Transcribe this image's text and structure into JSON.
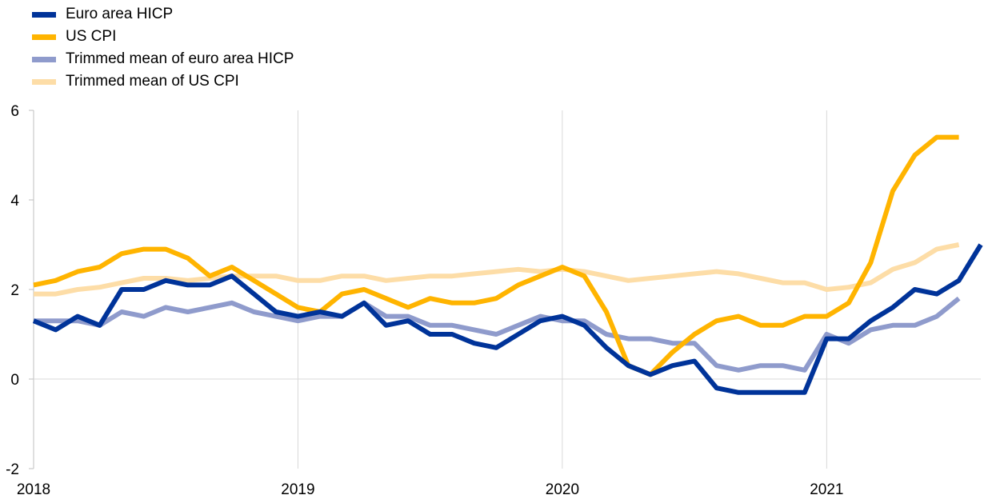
{
  "chart_data": {
    "type": "line",
    "title": "",
    "xlabel": "",
    "ylabel": "",
    "ylim": [
      -2,
      6
    ],
    "yticks": [
      -2,
      0,
      2,
      4,
      6
    ],
    "xticks": [
      {
        "label": "2018",
        "value": 2018
      },
      {
        "label": "2019",
        "value": 2019
      },
      {
        "label": "2020",
        "value": 2020
      },
      {
        "label": "2021",
        "value": 2021
      }
    ],
    "xlim": [
      2018,
      2021.583
    ],
    "grid": "vertical at year ticks",
    "legend_position": "top-left",
    "x_start": "2018-01",
    "series": [
      {
        "name": "Euro area HICP",
        "color": "#003399",
        "values": [
          1.3,
          1.1,
          1.4,
          1.2,
          2.0,
          2.0,
          2.2,
          2.1,
          2.1,
          2.3,
          1.9,
          1.5,
          1.4,
          1.5,
          1.4,
          1.7,
          1.2,
          1.3,
          1.0,
          1.0,
          0.8,
          0.7,
          1.0,
          1.3,
          1.4,
          1.2,
          0.7,
          0.3,
          0.1,
          0.3,
          0.4,
          -0.2,
          -0.3,
          -0.3,
          -0.3,
          -0.3,
          0.9,
          0.9,
          1.3,
          1.6,
          2.0,
          1.9,
          2.2,
          3.0
        ]
      },
      {
        "name": "US CPI",
        "color": "#FFB400",
        "values": [
          2.1,
          2.2,
          2.4,
          2.5,
          2.8,
          2.9,
          2.9,
          2.7,
          2.3,
          2.5,
          2.2,
          1.9,
          1.6,
          1.5,
          1.9,
          2.0,
          1.8,
          1.6,
          1.8,
          1.7,
          1.7,
          1.8,
          2.1,
          2.3,
          2.5,
          2.3,
          1.5,
          0.3,
          0.1,
          0.6,
          1.0,
          1.3,
          1.4,
          1.2,
          1.2,
          1.4,
          1.4,
          1.7,
          2.6,
          4.2,
          5.0,
          5.4,
          5.4
        ]
      },
      {
        "name": "Trimmed mean of euro area HICP",
        "color": "#8F9BCC",
        "values": [
          1.3,
          1.3,
          1.3,
          1.2,
          1.5,
          1.4,
          1.6,
          1.5,
          1.6,
          1.7,
          1.5,
          1.4,
          1.3,
          1.4,
          1.4,
          1.7,
          1.4,
          1.4,
          1.2,
          1.2,
          1.1,
          1.0,
          1.2,
          1.4,
          1.3,
          1.3,
          1.0,
          0.9,
          0.9,
          0.8,
          0.8,
          0.3,
          0.2,
          0.3,
          0.3,
          0.2,
          1.0,
          0.8,
          1.1,
          1.2,
          1.2,
          1.4,
          1.8
        ]
      },
      {
        "name": "Trimmed mean of US CPI",
        "color": "#FDDDA7",
        "values": [
          1.9,
          1.9,
          2.0,
          2.05,
          2.15,
          2.25,
          2.25,
          2.2,
          2.25,
          2.3,
          2.3,
          2.3,
          2.2,
          2.2,
          2.3,
          2.3,
          2.2,
          2.25,
          2.3,
          2.3,
          2.35,
          2.4,
          2.45,
          2.4,
          2.45,
          2.4,
          2.3,
          2.2,
          2.25,
          2.3,
          2.35,
          2.4,
          2.35,
          2.25,
          2.15,
          2.15,
          2.0,
          2.05,
          2.15,
          2.45,
          2.6,
          2.9,
          3.0
        ]
      }
    ]
  }
}
